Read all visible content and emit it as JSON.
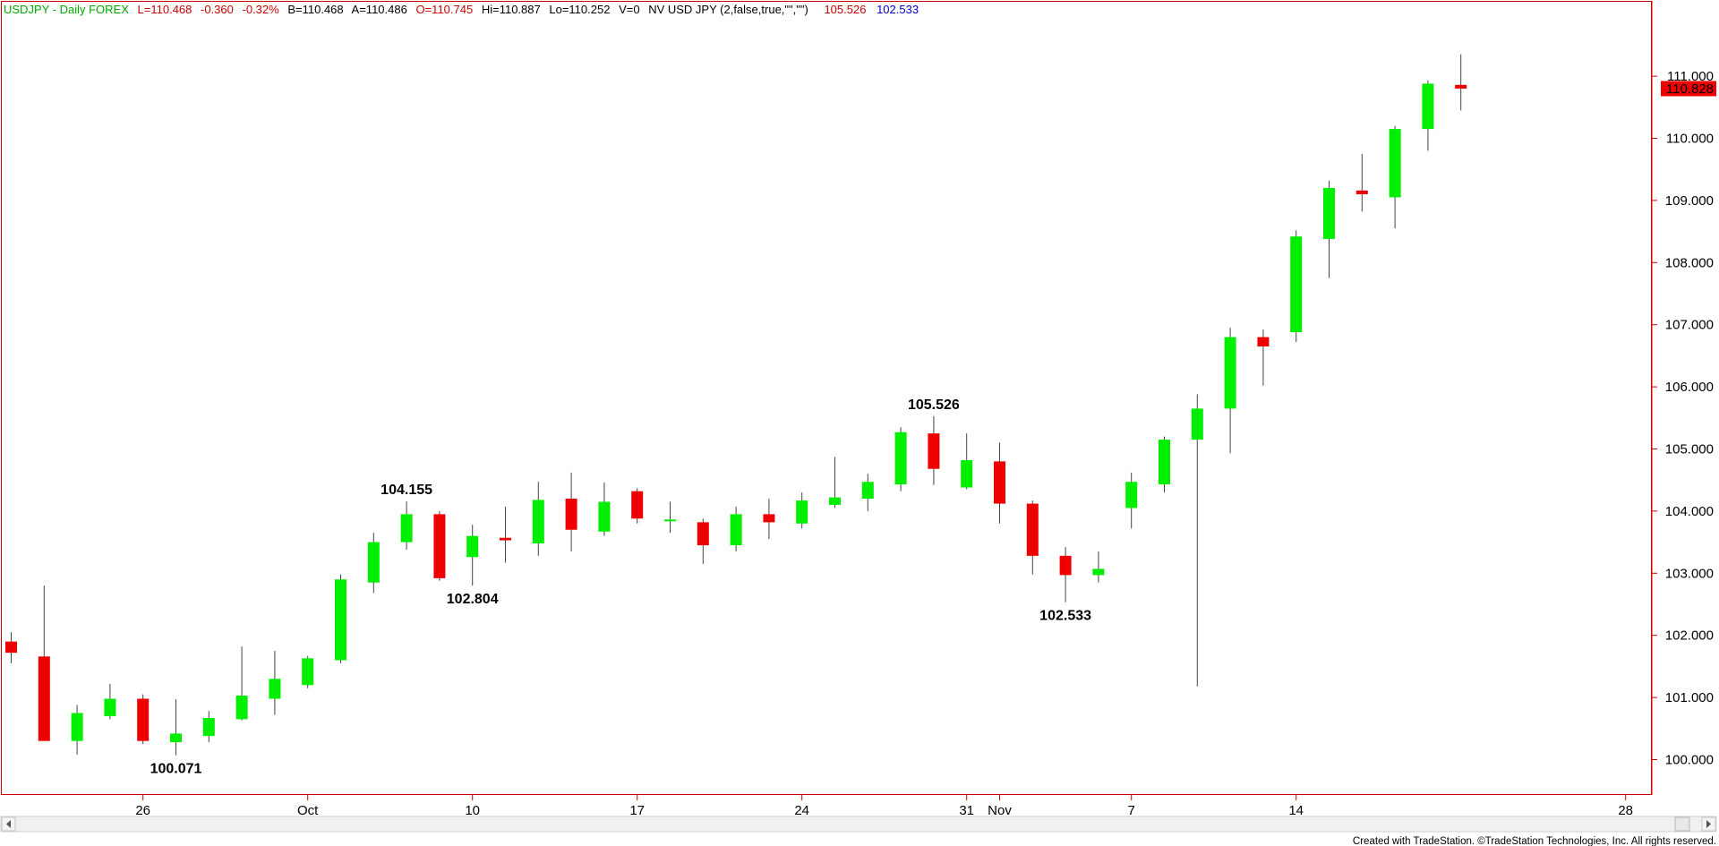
{
  "header": {
    "symbol": "USDJPY - Daily  FOREX",
    "last": "L=110.468",
    "change": "-0.360",
    "change_pct": "-0.32%",
    "bid": "B=110.468",
    "ask": "A=110.486",
    "open": "O=110.745",
    "high": "Hi=110.887",
    "low": "Lo=110.252",
    "volume": "V=0",
    "indicator": "NV USD JPY (2,false,true,\"\",\"\")",
    "ind_val_1": "105.526",
    "ind_val_2": "102.533"
  },
  "price_tag": "110.828",
  "credit": "Created with TradeStation. ©TradeStation Technologies, Inc. All rights reserved.",
  "colors": {
    "up": "#00ee00",
    "down": "#ee0000",
    "symbol_text": "#00aa00",
    "header_red": "#cc0000",
    "header_blue": "#0000cc",
    "axis": "#cc0000"
  },
  "chart_data": {
    "type": "candlestick",
    "ylim": [
      99.45,
      111.75
    ],
    "y_ticks": [
      "100.000",
      "101.000",
      "102.000",
      "103.000",
      "104.000",
      "105.000",
      "106.000",
      "107.000",
      "108.000",
      "109.000",
      "110.000",
      "111.000"
    ],
    "y_tick_values": [
      100,
      101,
      102,
      103,
      104,
      105,
      106,
      107,
      108,
      109,
      110,
      111
    ],
    "x_ticks": [
      {
        "label": "26",
        "index": 4
      },
      {
        "label": "Oct",
        "index": 9
      },
      {
        "label": "10",
        "index": 14
      },
      {
        "label": "17",
        "index": 19
      },
      {
        "label": "24",
        "index": 24
      },
      {
        "label": "31",
        "index": 29
      },
      {
        "label": "Nov",
        "index": 30
      },
      {
        "label": "7",
        "index": 34
      },
      {
        "label": "14",
        "index": 39
      },
      {
        "label": "28",
        "index": 49
      }
    ],
    "candles": [
      {
        "o": 101.9,
        "h": 102.05,
        "l": 101.55,
        "c": 101.72
      },
      {
        "o": 101.66,
        "h": 102.8,
        "l": 100.3,
        "c": 100.3
      },
      {
        "o": 100.3,
        "h": 100.88,
        "l": 100.08,
        "c": 100.75
      },
      {
        "o": 100.7,
        "h": 101.22,
        "l": 100.65,
        "c": 100.98
      },
      {
        "o": 100.98,
        "h": 101.05,
        "l": 100.25,
        "c": 100.3
      },
      {
        "o": 100.28,
        "h": 100.97,
        "l": 100.07,
        "c": 100.42
      },
      {
        "o": 100.38,
        "h": 100.78,
        "l": 100.28,
        "c": 100.67
      },
      {
        "o": 100.65,
        "h": 101.82,
        "l": 100.63,
        "c": 101.03
      },
      {
        "o": 100.98,
        "h": 101.75,
        "l": 100.72,
        "c": 101.3
      },
      {
        "o": 101.2,
        "h": 101.67,
        "l": 101.15,
        "c": 101.63
      },
      {
        "o": 101.6,
        "h": 102.98,
        "l": 101.55,
        "c": 102.9
      },
      {
        "o": 102.85,
        "h": 103.65,
        "l": 102.68,
        "c": 103.5
      },
      {
        "o": 103.5,
        "h": 104.155,
        "l": 103.38,
        "c": 103.95
      },
      {
        "o": 103.95,
        "h": 104.0,
        "l": 102.88,
        "c": 102.92
      },
      {
        "o": 103.26,
        "h": 103.78,
        "l": 102.8,
        "c": 103.6
      },
      {
        "o": 103.57,
        "h": 104.07,
        "l": 103.17,
        "c": 103.53
      },
      {
        "o": 103.48,
        "h": 104.47,
        "l": 103.28,
        "c": 104.18
      },
      {
        "o": 104.2,
        "h": 104.62,
        "l": 103.35,
        "c": 103.7
      },
      {
        "o": 103.67,
        "h": 104.46,
        "l": 103.6,
        "c": 104.15
      },
      {
        "o": 104.32,
        "h": 104.37,
        "l": 103.8,
        "c": 103.88
      },
      {
        "o": 103.85,
        "h": 104.15,
        "l": 103.65,
        "c": 103.85
      },
      {
        "o": 103.82,
        "h": 103.88,
        "l": 103.15,
        "c": 103.45
      },
      {
        "o": 103.45,
        "h": 104.07,
        "l": 103.35,
        "c": 103.95
      },
      {
        "o": 103.95,
        "h": 104.2,
        "l": 103.55,
        "c": 103.82
      },
      {
        "o": 103.8,
        "h": 104.3,
        "l": 103.72,
        "c": 104.17
      },
      {
        "o": 104.1,
        "h": 104.87,
        "l": 104.05,
        "c": 104.22
      },
      {
        "o": 104.2,
        "h": 104.6,
        "l": 104.0,
        "c": 104.47
      },
      {
        "o": 104.43,
        "h": 105.35,
        "l": 104.32,
        "c": 105.27
      },
      {
        "o": 105.25,
        "h": 105.526,
        "l": 104.42,
        "c": 104.68
      },
      {
        "o": 104.38,
        "h": 105.25,
        "l": 104.35,
        "c": 104.82
      },
      {
        "o": 104.8,
        "h": 105.1,
        "l": 103.8,
        "c": 104.12
      },
      {
        "o": 104.12,
        "h": 104.17,
        "l": 102.98,
        "c": 103.28
      },
      {
        "o": 103.28,
        "h": 103.42,
        "l": 102.533,
        "c": 102.97
      },
      {
        "o": 102.97,
        "h": 103.35,
        "l": 102.85,
        "c": 103.07
      },
      {
        "o": 104.05,
        "h": 104.62,
        "l": 103.72,
        "c": 104.47
      },
      {
        "o": 104.43,
        "h": 105.2,
        "l": 104.3,
        "c": 105.15
      },
      {
        "o": 105.15,
        "h": 105.88,
        "l": 101.18,
        "c": 105.65
      },
      {
        "o": 105.65,
        "h": 106.95,
        "l": 104.93,
        "c": 106.8
      },
      {
        "o": 106.8,
        "h": 106.92,
        "l": 106.02,
        "c": 106.65
      },
      {
        "o": 106.88,
        "h": 108.52,
        "l": 106.72,
        "c": 108.42
      },
      {
        "o": 108.38,
        "h": 109.32,
        "l": 107.75,
        "c": 109.2
      },
      {
        "o": 109.16,
        "h": 109.75,
        "l": 108.82,
        "c": 109.1
      },
      {
        "o": 109.05,
        "h": 110.2,
        "l": 108.55,
        "c": 110.15
      },
      {
        "o": 110.15,
        "h": 110.93,
        "l": 109.8,
        "c": 110.88
      },
      {
        "o": 110.86,
        "h": 111.35,
        "l": 110.45,
        "c": 110.8
      }
    ],
    "annotations": [
      {
        "text": "100.071",
        "index": 5,
        "price": 100.071,
        "pos": "below"
      },
      {
        "text": "104.155",
        "index": 12,
        "price": 104.155,
        "pos": "above"
      },
      {
        "text": "102.804",
        "index": 14,
        "price": 102.804,
        "pos": "below"
      },
      {
        "text": "105.526",
        "index": 28,
        "price": 105.526,
        "pos": "above"
      },
      {
        "text": "102.533",
        "index": 32,
        "price": 102.533,
        "pos": "below"
      }
    ]
  }
}
